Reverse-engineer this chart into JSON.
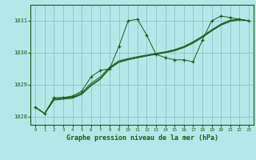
{
  "title": "Graphe pression niveau de la mer (hPa)",
  "background_color": "#b3e8e8",
  "grid_color": "#80c0c0",
  "line_color": "#1a5c1a",
  "xlim": [
    -0.5,
    23.5
  ],
  "ylim": [
    1027.75,
    1031.5
  ],
  "yticks": [
    1028,
    1029,
    1030,
    1031
  ],
  "xticks": [
    0,
    1,
    2,
    3,
    4,
    5,
    6,
    7,
    8,
    9,
    10,
    11,
    12,
    13,
    14,
    15,
    16,
    17,
    18,
    19,
    20,
    21,
    22,
    23
  ],
  "main_x": [
    0,
    1,
    2,
    3,
    4,
    5,
    6,
    7,
    8,
    9,
    10,
    11,
    12,
    13,
    14,
    15,
    16,
    17,
    18,
    19,
    20,
    21,
    22,
    23
  ],
  "main_y": [
    1028.3,
    1028.1,
    1028.6,
    1028.6,
    1028.65,
    1028.8,
    1029.25,
    1029.45,
    1029.5,
    1030.2,
    1031.0,
    1031.05,
    1030.55,
    1029.95,
    1029.85,
    1029.78,
    1029.78,
    1029.72,
    1030.4,
    1031.0,
    1031.15,
    1031.1,
    1031.05,
    1031.0
  ],
  "trend1_x": [
    0,
    1,
    2,
    3,
    4,
    5,
    6,
    7,
    8,
    9,
    10,
    11,
    12,
    13,
    14,
    15,
    16,
    17,
    18,
    19,
    20,
    21,
    22,
    23
  ],
  "trend1_y": [
    1028.3,
    1028.1,
    1028.55,
    1028.6,
    1028.62,
    1028.75,
    1029.05,
    1029.25,
    1029.55,
    1029.75,
    1029.82,
    1029.88,
    1029.93,
    1029.98,
    1030.03,
    1030.1,
    1030.2,
    1030.35,
    1030.52,
    1030.72,
    1030.9,
    1031.02,
    1031.05,
    1031.0
  ],
  "trend2_x": [
    0,
    1,
    2,
    3,
    4,
    5,
    6,
    7,
    8,
    9,
    10,
    11,
    12,
    13,
    14,
    15,
    16,
    17,
    18,
    19,
    20,
    21,
    22,
    23
  ],
  "trend2_y": [
    1028.3,
    1028.1,
    1028.55,
    1028.58,
    1028.6,
    1028.72,
    1029.0,
    1029.2,
    1029.52,
    1029.72,
    1029.8,
    1029.86,
    1029.92,
    1029.97,
    1030.02,
    1030.08,
    1030.18,
    1030.32,
    1030.5,
    1030.7,
    1030.88,
    1031.0,
    1031.04,
    1031.0
  ],
  "trend3_x": [
    0,
    1,
    2,
    3,
    4,
    5,
    6,
    7,
    8,
    9,
    10,
    11,
    12,
    13,
    14,
    15,
    16,
    17,
    18,
    19,
    20,
    21,
    22,
    23
  ],
  "trend3_y": [
    1028.3,
    1028.1,
    1028.52,
    1028.55,
    1028.58,
    1028.7,
    1028.97,
    1029.17,
    1029.5,
    1029.7,
    1029.78,
    1029.84,
    1029.9,
    1029.95,
    1030.0,
    1030.06,
    1030.16,
    1030.3,
    1030.48,
    1030.68,
    1030.86,
    1030.98,
    1031.03,
    1031.0
  ]
}
